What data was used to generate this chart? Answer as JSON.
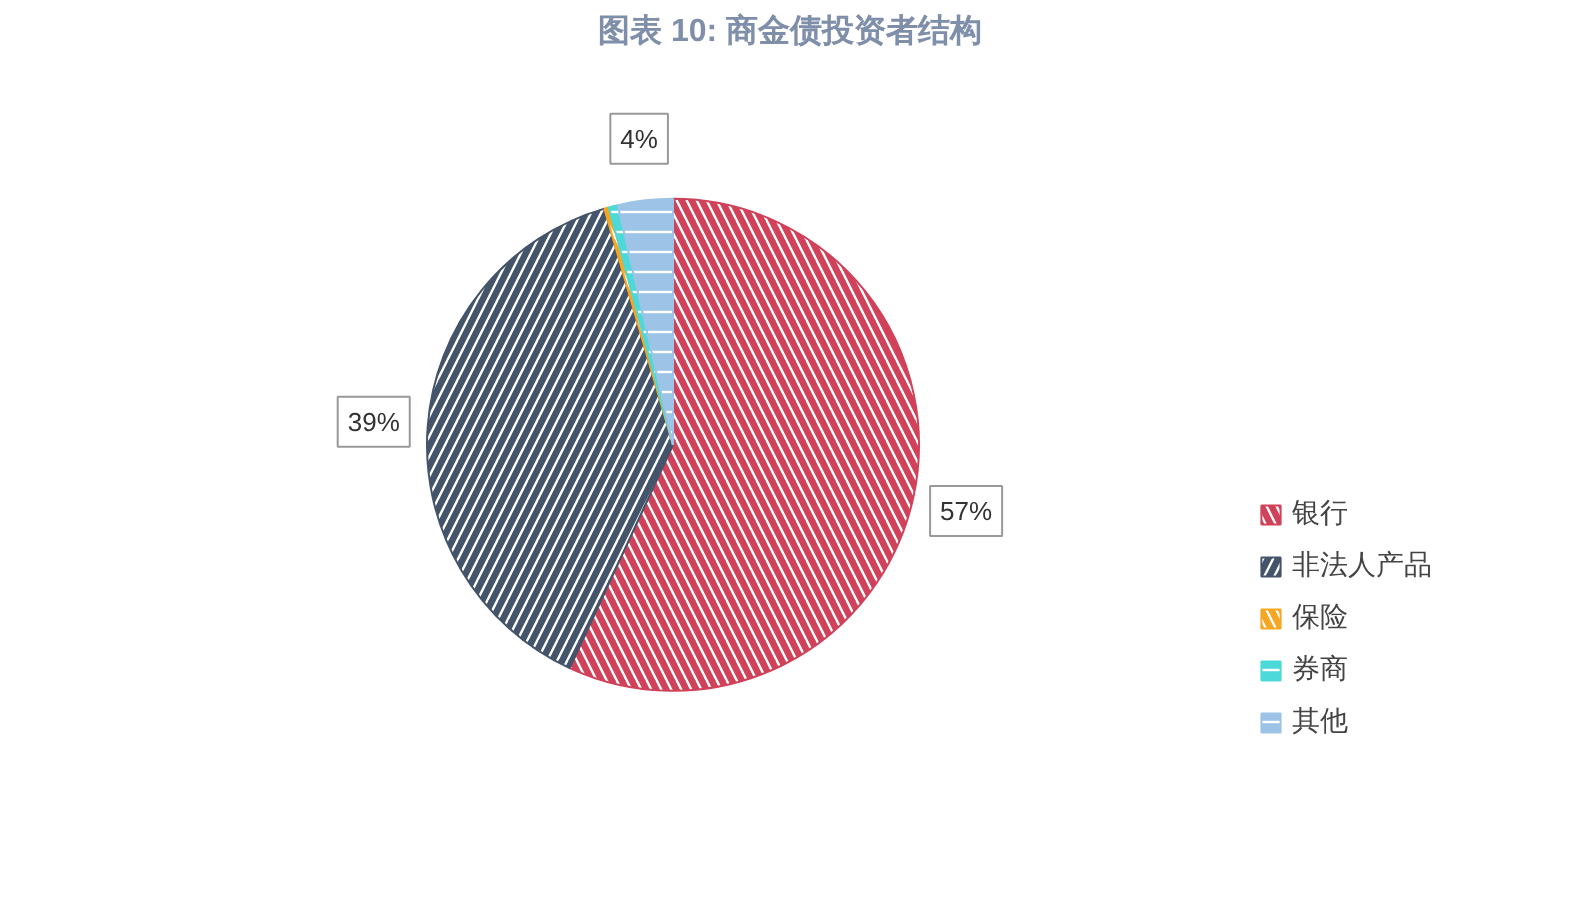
{
  "chart_data": {
    "type": "pie",
    "title": "图表 10: 商金债投资者结构",
    "categories": [
      "银行",
      "非法人产品",
      "保险",
      "券商",
      "其他"
    ],
    "values": [
      56.9,
      38.6,
      0.3,
      0.6,
      3.6
    ],
    "colors": [
      "#d0415a",
      "#44546a",
      "#f5a623",
      "#4dd9d9",
      "#9dc3e6"
    ],
    "value_labels": [
      "57%",
      "39%",
      null,
      null,
      "4%"
    ],
    "legend": "right"
  }
}
